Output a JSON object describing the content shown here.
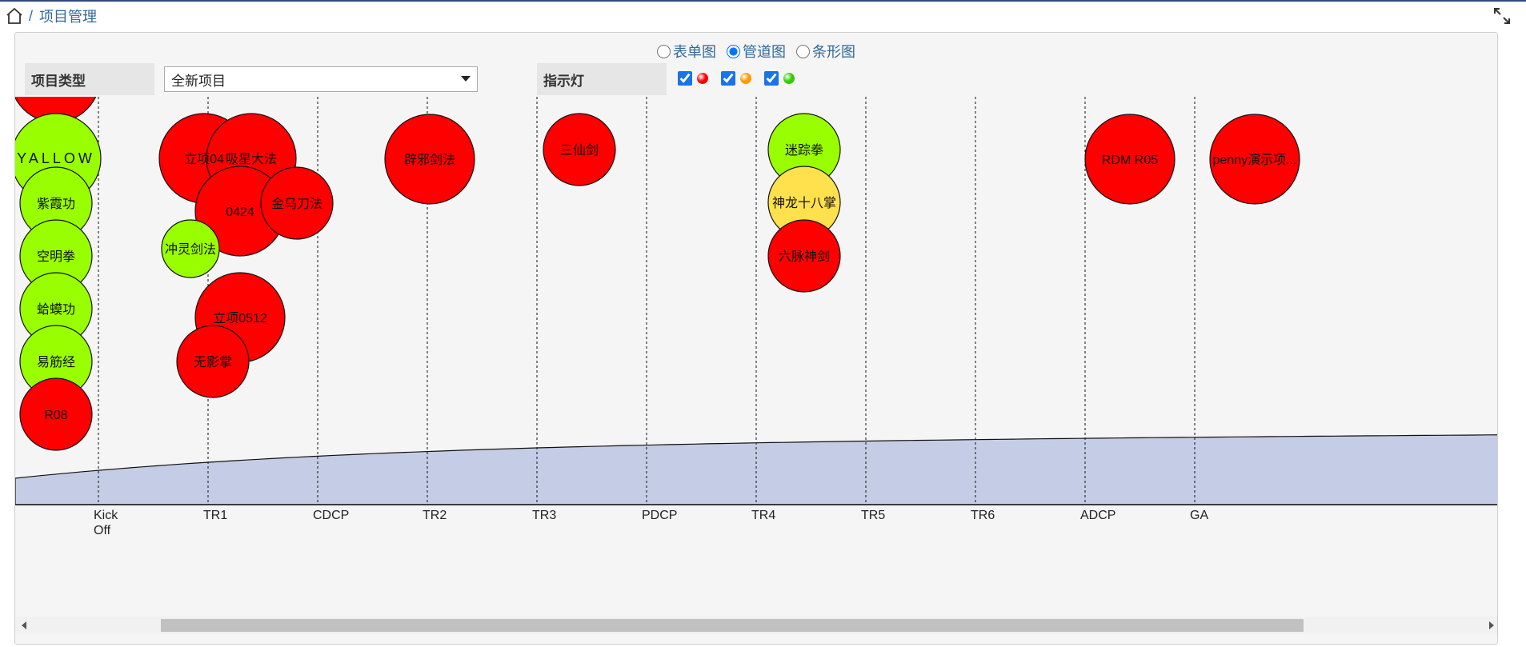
{
  "breadcrumb": {
    "separator": "/",
    "title": "项目管理"
  },
  "view_toggle": {
    "options": [
      "表单图",
      "管道图",
      "条形图"
    ],
    "selected": "管道图"
  },
  "filters": {
    "project_type_label": "项目类型",
    "project_type_value": "全新项目",
    "indicator_label": "指示灯",
    "indicators": [
      {
        "color": "red",
        "hex": "#ff0000",
        "checked": true
      },
      {
        "color": "orange",
        "hex": "#ff9900",
        "checked": true
      },
      {
        "color": "green",
        "hex": "#33cc00",
        "checked": true
      }
    ]
  },
  "colors": {
    "red": "#ff0000",
    "green": "#99ff00",
    "yellow": "#ffe14d",
    "area": "#c5cde6"
  },
  "chart_data": {
    "type": "pipeline",
    "stages": [
      "Kick Off",
      "TR1",
      "CDCP",
      "TR2",
      "TR3",
      "PDCP",
      "TR4",
      "TR5",
      "TR6",
      "ADCP",
      "GA"
    ],
    "projects": [
      {
        "name": "",
        "stage": "Kick Off",
        "status": "red"
      },
      {
        "name": "YALLOW",
        "stage": "Kick Off",
        "status": "green"
      },
      {
        "name": "紫霞功",
        "stage": "Kick Off",
        "status": "green"
      },
      {
        "name": "空明拳",
        "stage": "Kick Off",
        "status": "green"
      },
      {
        "name": "蛤蟆功",
        "stage": "Kick Off",
        "status": "green"
      },
      {
        "name": "易筋经",
        "stage": "Kick Off",
        "status": "green"
      },
      {
        "name": "R08",
        "stage": "Kick Off",
        "status": "red"
      },
      {
        "name": "立项04",
        "stage": "TR1",
        "status": "red"
      },
      {
        "name": "吸星大法",
        "stage": "TR1",
        "status": "red"
      },
      {
        "name": "0424",
        "stage": "TR1",
        "status": "red"
      },
      {
        "name": "金乌刀法",
        "stage": "TR1",
        "status": "red"
      },
      {
        "name": "冲灵剑法",
        "stage": "TR1",
        "status": "green"
      },
      {
        "name": "立项0512",
        "stage": "TR1",
        "status": "red"
      },
      {
        "name": "无影掌",
        "stage": "TR1",
        "status": "red"
      },
      {
        "name": "辟邪剑法",
        "stage": "TR2",
        "status": "red"
      },
      {
        "name": "三仙剑",
        "stage": "TR3",
        "status": "red"
      },
      {
        "name": "迷踪拳",
        "stage": "TR4",
        "status": "green"
      },
      {
        "name": "神龙十八掌",
        "stage": "TR4",
        "status": "yellow"
      },
      {
        "name": "六脉神剑",
        "stage": "TR4",
        "status": "red"
      },
      {
        "name": "RDM R05",
        "stage": "ADCP",
        "status": "red"
      },
      {
        "name": "penny演示项...",
        "stage": "GA",
        "status": "red"
      }
    ]
  }
}
